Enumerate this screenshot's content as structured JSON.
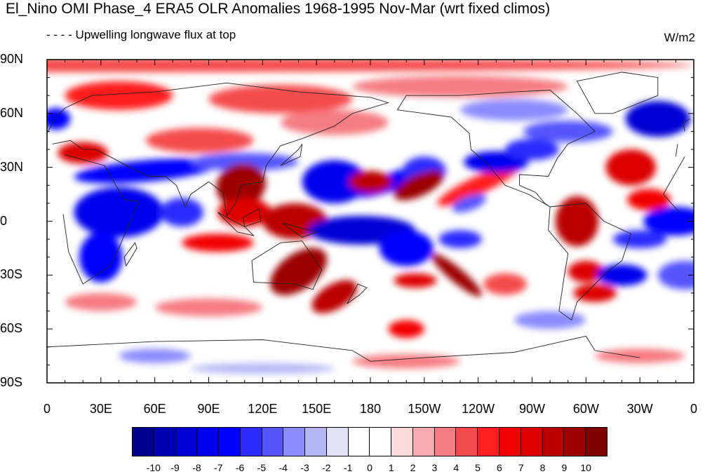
{
  "title": "El_Nino OMI Phase_4 ERA5 OLR Anomalies 1968-1995 Nov-Mar (wrt fixed climos)",
  "subtitle": "- - - - Upwelling longwave flux at top",
  "units": "W/m2",
  "lat_labels": [
    "90N",
    "60N",
    "30N",
    "0",
    "30S",
    "60S",
    "90S"
  ],
  "lon_labels": [
    "0",
    "30E",
    "60E",
    "90E",
    "120E",
    "150E",
    "180",
    "150W",
    "120W",
    "90W",
    "60W",
    "30W",
    "0"
  ],
  "colorbar": {
    "labels": [
      "-10",
      "-9",
      "-8",
      "-7",
      "-6",
      "-5",
      "-4",
      "-3",
      "-2",
      "-1",
      "0",
      "1",
      "2",
      "3",
      "4",
      "5",
      "6",
      "7",
      "8",
      "9",
      "10"
    ],
    "colors": [
      "#00008f",
      "#0000b3",
      "#0000d6",
      "#0000ee",
      "#0000ff",
      "#2b2bff",
      "#5555ff",
      "#8b8bff",
      "#b6b6f7",
      "#e2e2f7",
      "#ffffff",
      "#ffffff",
      "#f9d9dc",
      "#f7aaaf",
      "#f57c82",
      "#f44c4c",
      "#ff1f1f",
      "#f20000",
      "#dd0000",
      "#bb0000",
      "#9c0000",
      "#800000"
    ]
  }
}
